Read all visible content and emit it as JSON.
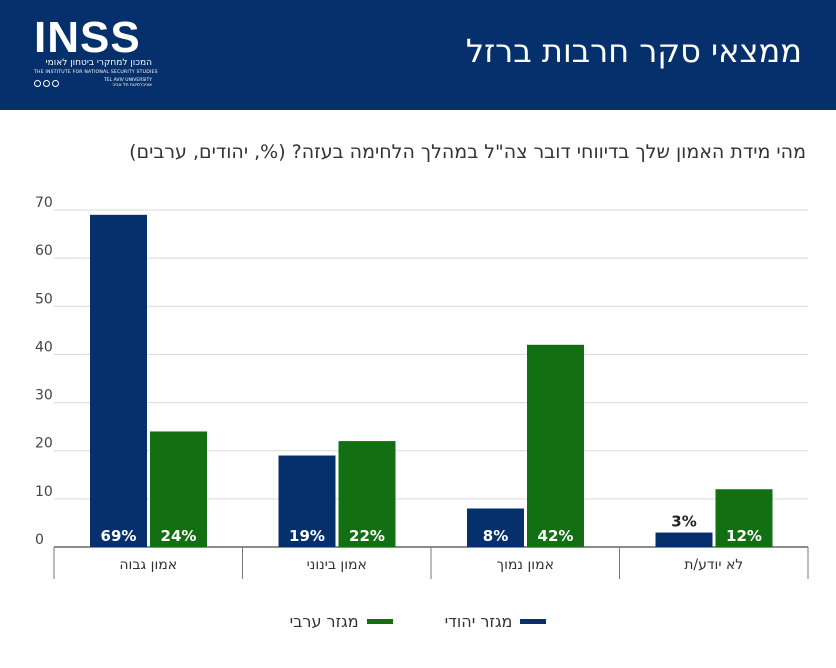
{
  "header": {
    "title": "ממצאי סקר חרבות ברזל",
    "logo": {
      "wordmark": "INSS",
      "hebrew_name": "המכון למחקרי ביטחון לאומי",
      "english_name": "THE INSTITUTE FOR NATIONAL SECURITY STUDIES",
      "university_he": "אוניברסיטת תל אביב",
      "university_en": "TEL AVIV UNIVERSITY"
    }
  },
  "chart_data": {
    "type": "bar",
    "title": "מהי מידת האמון שלך בדיווחי דובר צה\"ל במהלך הלחימה בעזה? (%, יהודים, ערבים)",
    "categories": [
      "אמון גבוה",
      "אמון בינוני",
      "אמון נמוך",
      "לא יודע/ת"
    ],
    "series": [
      {
        "name": "מגזר יהודי",
        "values": [
          69,
          19,
          8,
          3
        ],
        "labels": [
          "69%",
          "19%",
          "8%",
          "3%"
        ],
        "color": "#06306b"
      },
      {
        "name": "מגזר ערבי",
        "values": [
          24,
          22,
          42,
          12
        ],
        "labels": [
          "24%",
          "22%",
          "42%",
          "12%"
        ],
        "color": "#137012"
      }
    ],
    "yticks": [
      "0",
      "10",
      "20",
      "30",
      "40",
      "50",
      "60",
      "70"
    ],
    "ylim": [
      0,
      70
    ],
    "grid": true,
    "legend_position": "bottom-center"
  }
}
